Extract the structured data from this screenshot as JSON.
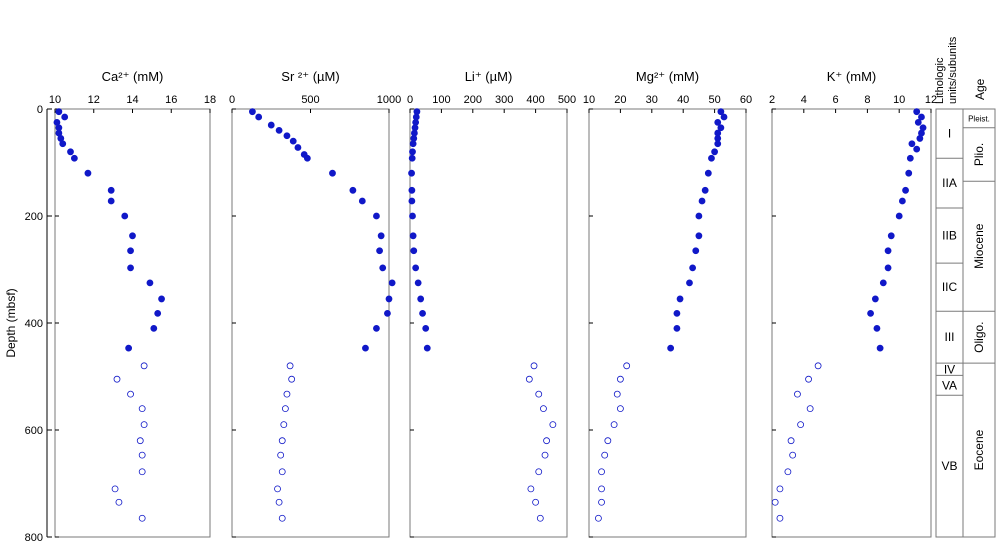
{
  "y_axis": {
    "label": "Depth (mbsf)",
    "range": [
      0,
      800
    ],
    "ticks": [
      0,
      200,
      400,
      600,
      800
    ]
  },
  "columns": {
    "units_header": [
      "Lithologic",
      "units/subunits"
    ],
    "age_header": "Age"
  },
  "units": [
    {
      "label": "I",
      "top": 0,
      "bottom": 92
    },
    {
      "label": "IIA",
      "top": 92,
      "bottom": 185
    },
    {
      "label": "IIB",
      "top": 185,
      "bottom": 288
    },
    {
      "label": "IIC",
      "top": 288,
      "bottom": 378
    },
    {
      "label": "III",
      "top": 378,
      "bottom": 475
    },
    {
      "label": "IV",
      "top": 475,
      "bottom": 498
    },
    {
      "label": "VA",
      "top": 498,
      "bottom": 535
    },
    {
      "label": "VB",
      "top": 535,
      "bottom": 800
    }
  ],
  "ages": [
    {
      "label": "Pleist.",
      "top": 0,
      "bottom": 35,
      "orientation": "horizontal"
    },
    {
      "label": "Plio.",
      "top": 35,
      "bottom": 135,
      "orientation": "vertical"
    },
    {
      "label": "Miocene",
      "top": 135,
      "bottom": 378,
      "orientation": "vertical"
    },
    {
      "label": "Oligo.",
      "top": 378,
      "bottom": 475,
      "orientation": "vertical"
    },
    {
      "label": "Eocene",
      "top": 475,
      "bottom": 800,
      "orientation": "vertical"
    }
  ],
  "colors": {
    "marker": "#1018c8",
    "axis": "#000000",
    "box": "#7a7a7a"
  },
  "chart_data": [
    {
      "type": "scatter",
      "title": "Ca²⁺ (mM)",
      "xlabel": "Ca²⁺ (mM)",
      "xlim": [
        10,
        18
      ],
      "xticks": [
        10,
        12,
        14,
        16,
        18
      ],
      "filled": [
        [
          10.2,
          5
        ],
        [
          10.5,
          15
        ],
        [
          10.1,
          25
        ],
        [
          10.2,
          35
        ],
        [
          10.2,
          45
        ],
        [
          10.3,
          55
        ],
        [
          10.4,
          65
        ],
        [
          10.8,
          80
        ],
        [
          11.0,
          92
        ],
        [
          11.7,
          120
        ],
        [
          12.9,
          152
        ],
        [
          12.9,
          172
        ],
        [
          13.6,
          200
        ],
        [
          14.0,
          237
        ],
        [
          13.9,
          265
        ],
        [
          13.9,
          297
        ],
        [
          14.9,
          325
        ],
        [
          15.5,
          355
        ],
        [
          15.3,
          382
        ],
        [
          15.1,
          410
        ],
        [
          13.8,
          447
        ]
      ],
      "open": [
        [
          14.6,
          480
        ],
        [
          13.2,
          505
        ],
        [
          13.9,
          533
        ],
        [
          14.5,
          560
        ],
        [
          14.6,
          590
        ],
        [
          14.4,
          620
        ],
        [
          14.5,
          647
        ],
        [
          14.5,
          678
        ],
        [
          13.1,
          710
        ],
        [
          13.3,
          735
        ],
        [
          14.5,
          765
        ]
      ]
    },
    {
      "type": "scatter",
      "title": "Sr ²⁺ (µM)",
      "xlabel": "Sr ²⁺ (µM)",
      "xlim": [
        0,
        1000
      ],
      "xticks": [
        0,
        500,
        1000
      ],
      "filled": [
        [
          130,
          5
        ],
        [
          170,
          15
        ],
        [
          250,
          30
        ],
        [
          300,
          40
        ],
        [
          350,
          50
        ],
        [
          390,
          60
        ],
        [
          420,
          72
        ],
        [
          460,
          85
        ],
        [
          480,
          92
        ],
        [
          640,
          120
        ],
        [
          770,
          152
        ],
        [
          830,
          172
        ],
        [
          920,
          200
        ],
        [
          950,
          237
        ],
        [
          940,
          265
        ],
        [
          960,
          297
        ],
        [
          1020,
          325
        ],
        [
          1000,
          355
        ],
        [
          990,
          382
        ],
        [
          920,
          410
        ],
        [
          850,
          447
        ]
      ],
      "open": [
        [
          370,
          480
        ],
        [
          380,
          505
        ],
        [
          350,
          533
        ],
        [
          340,
          560
        ],
        [
          330,
          590
        ],
        [
          320,
          620
        ],
        [
          310,
          647
        ],
        [
          320,
          678
        ],
        [
          290,
          710
        ],
        [
          300,
          735
        ],
        [
          320,
          765
        ]
      ]
    },
    {
      "type": "scatter",
      "title": "Li⁺ (µM)",
      "xlabel": "Li⁺ (µM)",
      "xlim": [
        0,
        500
      ],
      "xticks": [
        0,
        100,
        200,
        300,
        400,
        500
      ],
      "filled": [
        [
          22,
          5
        ],
        [
          20,
          15
        ],
        [
          18,
          25
        ],
        [
          16,
          35
        ],
        [
          14,
          45
        ],
        [
          12,
          55
        ],
        [
          10,
          65
        ],
        [
          8,
          80
        ],
        [
          7,
          92
        ],
        [
          5,
          120
        ],
        [
          6,
          152
        ],
        [
          6,
          172
        ],
        [
          8,
          200
        ],
        [
          10,
          237
        ],
        [
          12,
          265
        ],
        [
          18,
          297
        ],
        [
          26,
          325
        ],
        [
          34,
          355
        ],
        [
          40,
          382
        ],
        [
          50,
          410
        ],
        [
          55,
          447
        ]
      ],
      "open": [
        [
          395,
          480
        ],
        [
          380,
          505
        ],
        [
          410,
          533
        ],
        [
          425,
          560
        ],
        [
          455,
          590
        ],
        [
          435,
          620
        ],
        [
          430,
          647
        ],
        [
          410,
          678
        ],
        [
          385,
          710
        ],
        [
          400,
          735
        ],
        [
          415,
          765
        ]
      ]
    },
    {
      "type": "scatter",
      "title": "Mg²⁺ (mM)",
      "xlabel": "Mg²⁺ (mM)",
      "xlim": [
        10,
        60
      ],
      "xticks": [
        10,
        20,
        30,
        40,
        50,
        60
      ],
      "filled": [
        [
          52,
          5
        ],
        [
          53,
          15
        ],
        [
          51,
          25
        ],
        [
          52,
          35
        ],
        [
          51,
          45
        ],
        [
          51,
          55
        ],
        [
          51,
          65
        ],
        [
          50,
          80
        ],
        [
          49,
          92
        ],
        [
          48,
          120
        ],
        [
          47,
          152
        ],
        [
          46,
          172
        ],
        [
          45,
          200
        ],
        [
          45,
          237
        ],
        [
          44,
          265
        ],
        [
          43,
          297
        ],
        [
          42,
          325
        ],
        [
          39,
          355
        ],
        [
          38,
          382
        ],
        [
          38,
          410
        ],
        [
          36,
          447
        ]
      ],
      "open": [
        [
          22,
          480
        ],
        [
          20,
          505
        ],
        [
          19,
          533
        ],
        [
          20,
          560
        ],
        [
          18,
          590
        ],
        [
          16,
          620
        ],
        [
          15,
          647
        ],
        [
          14,
          678
        ],
        [
          14,
          710
        ],
        [
          14,
          735
        ],
        [
          13,
          765
        ]
      ]
    },
    {
      "type": "scatter",
      "title": "K⁺ (mM)",
      "xlabel": "K⁺ (mM)",
      "xlim": [
        2,
        12
      ],
      "xticks": [
        2,
        4,
        6,
        8,
        10,
        12
      ],
      "filled": [
        [
          11.1,
          5
        ],
        [
          11.4,
          15
        ],
        [
          11.2,
          25
        ],
        [
          11.5,
          35
        ],
        [
          11.4,
          45
        ],
        [
          11.3,
          55
        ],
        [
          10.8,
          65
        ],
        [
          11.1,
          75
        ],
        [
          10.7,
          92
        ],
        [
          10.6,
          120
        ],
        [
          10.4,
          152
        ],
        [
          10.2,
          172
        ],
        [
          10.0,
          200
        ],
        [
          9.5,
          237
        ],
        [
          9.3,
          265
        ],
        [
          9.3,
          297
        ],
        [
          9.0,
          325
        ],
        [
          8.5,
          355
        ],
        [
          8.2,
          382
        ],
        [
          8.6,
          410
        ],
        [
          8.8,
          447
        ]
      ],
      "open": [
        [
          4.9,
          480
        ],
        [
          4.3,
          505
        ],
        [
          3.6,
          533
        ],
        [
          4.4,
          560
        ],
        [
          3.8,
          590
        ],
        [
          3.2,
          620
        ],
        [
          3.3,
          647
        ],
        [
          3.0,
          678
        ],
        [
          2.5,
          710
        ],
        [
          2.2,
          735
        ],
        [
          2.5,
          765
        ]
      ]
    }
  ]
}
